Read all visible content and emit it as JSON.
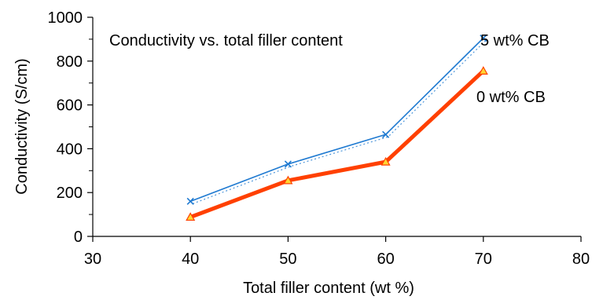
{
  "chart_data": {
    "type": "line",
    "title": "Conductivity vs. total filler content",
    "xlabel": "Total filler content (wt %)",
    "ylabel": "Conductivity (S/cm)",
    "xlim": [
      30,
      80
    ],
    "ylim": [
      0,
      1000
    ],
    "x_ticks": [
      30,
      40,
      50,
      60,
      70,
      80
    ],
    "y_ticks": [
      0,
      200,
      400,
      600,
      800,
      1000
    ],
    "y_minor_ticks": [
      100,
      300,
      500,
      700,
      900
    ],
    "grid": false,
    "series": [
      {
        "name": "5 wt% CB",
        "color": "#1f7ad1",
        "marker": "x-icon",
        "x": [
          40,
          50,
          60,
          70
        ],
        "y": [
          160,
          330,
          465,
          905
        ]
      },
      {
        "name": "0 wt% CB",
        "color": "#ff4000",
        "marker": "triangle-icon",
        "marker_fill": "#ffd633",
        "x": [
          40,
          50,
          60,
          70
        ],
        "y": [
          88,
          255,
          340,
          755
        ]
      }
    ]
  }
}
